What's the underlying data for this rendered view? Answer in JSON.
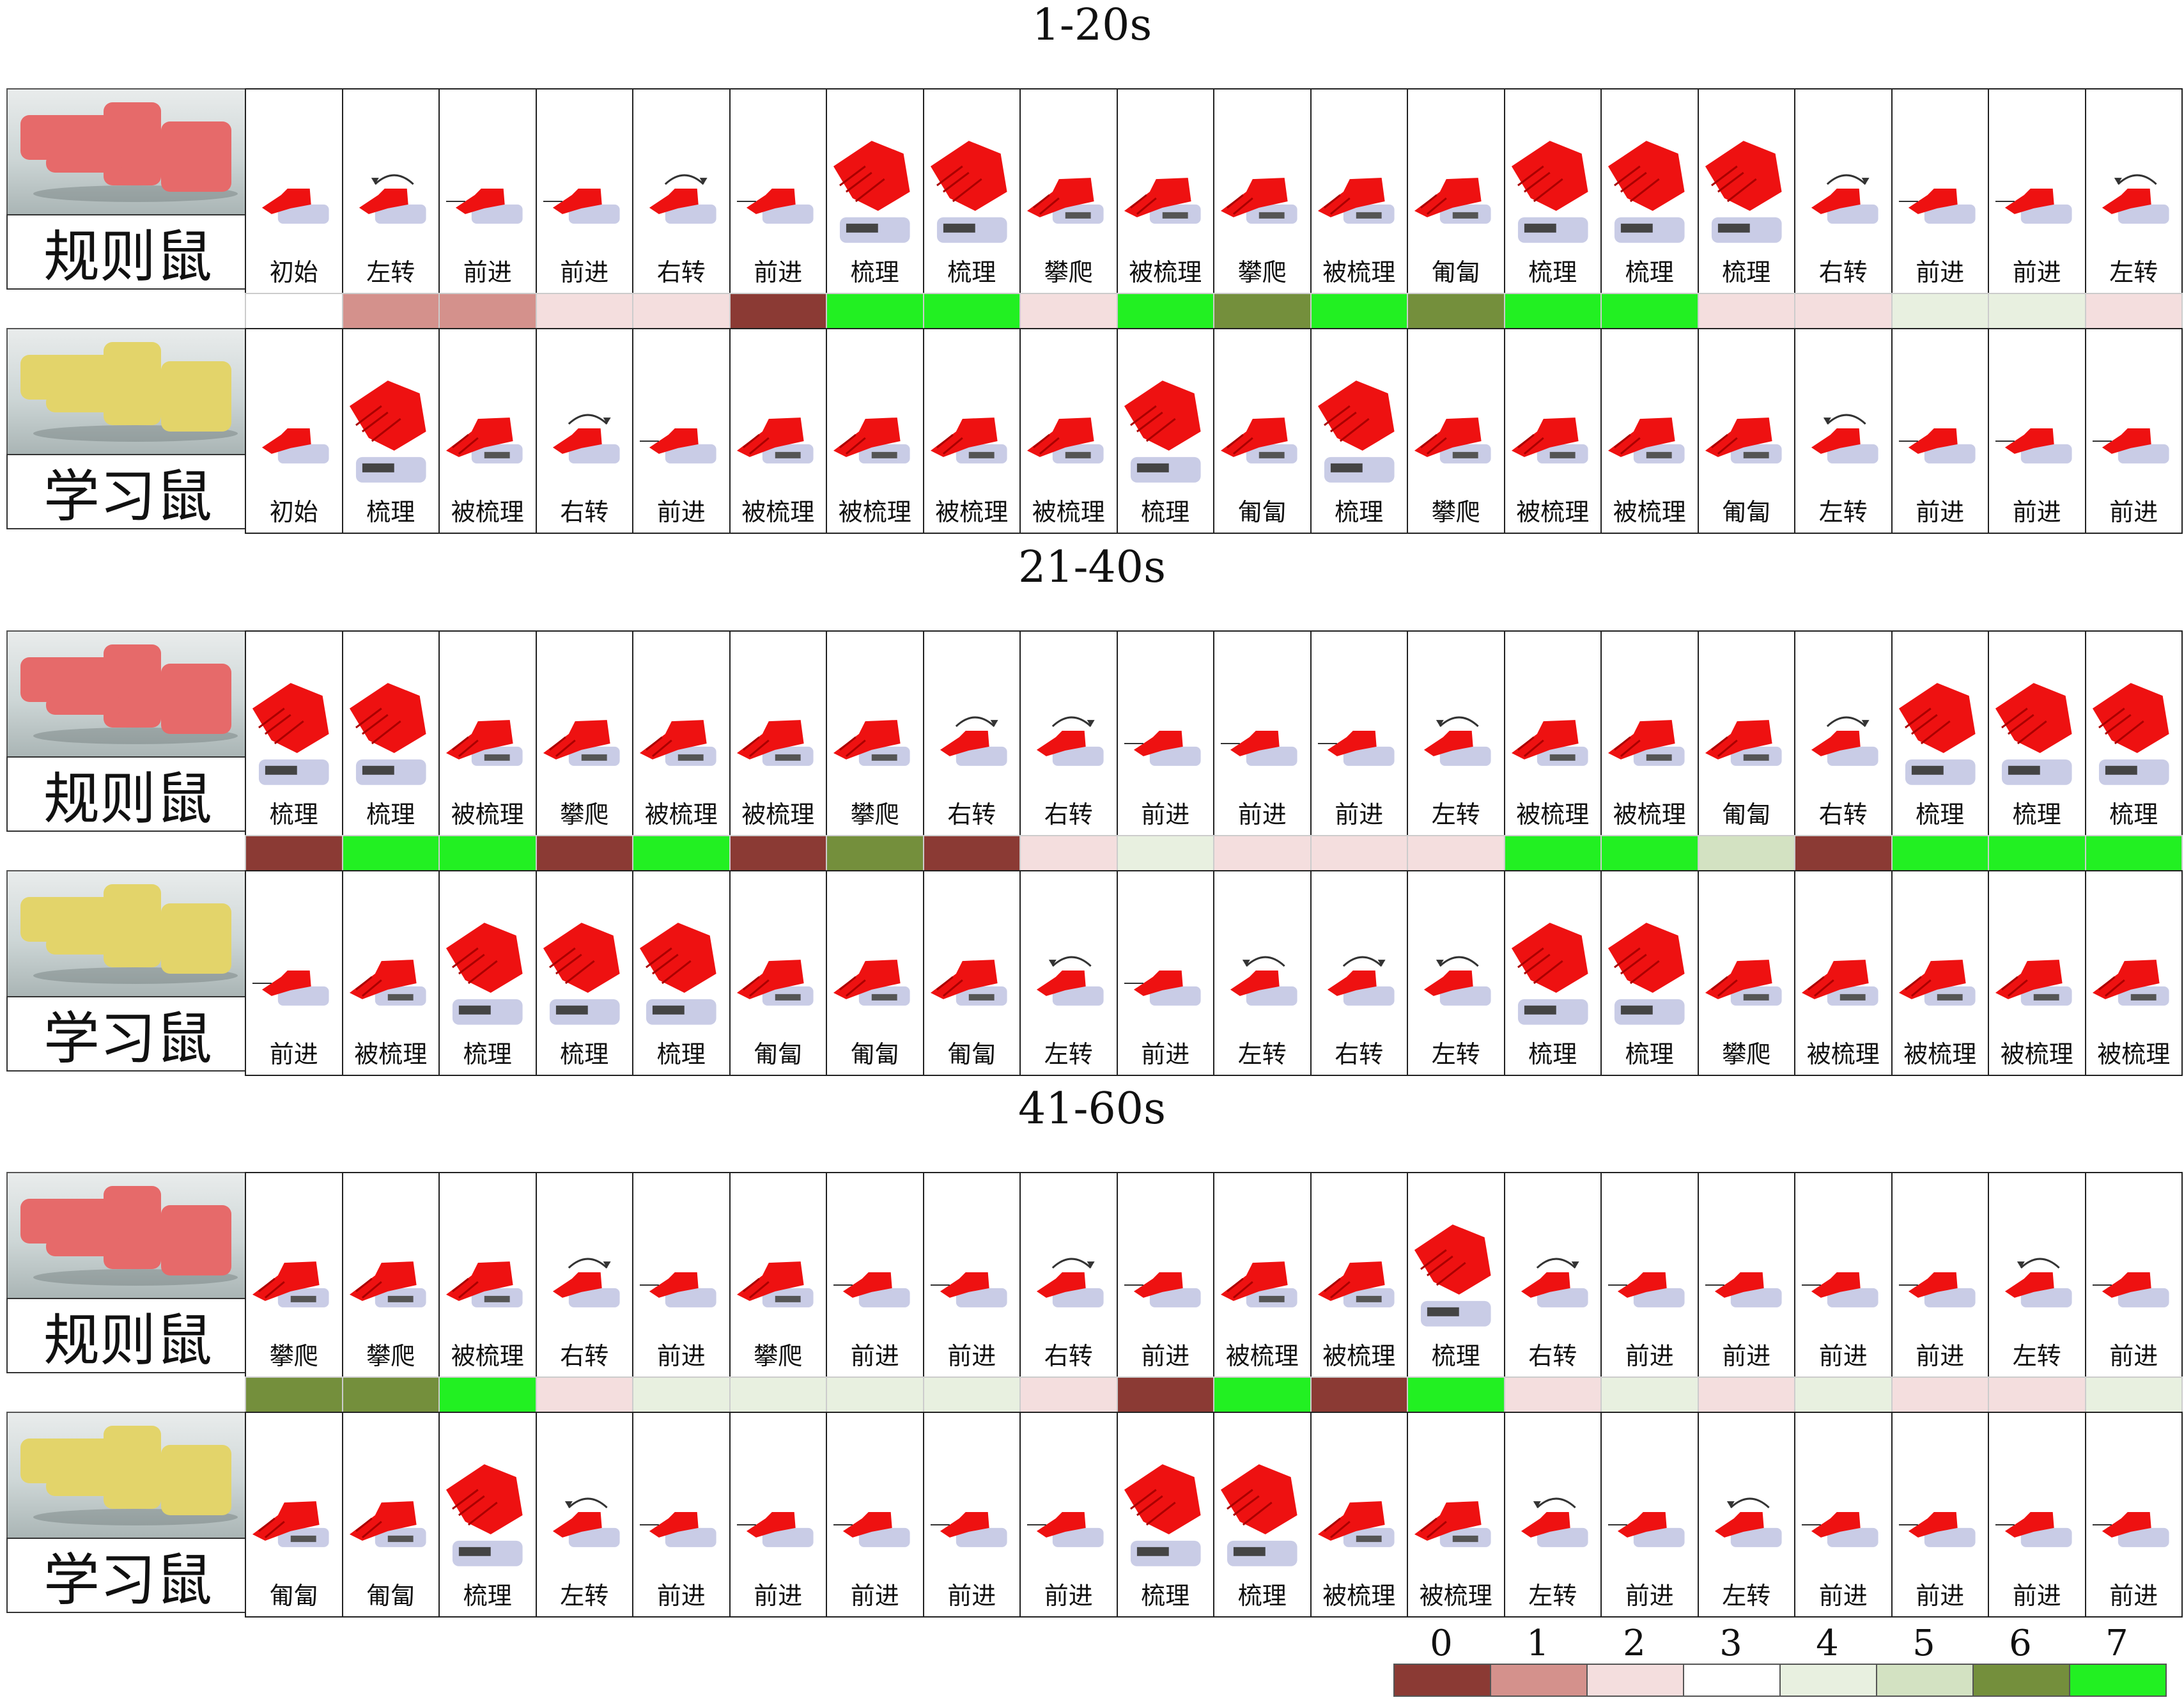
{
  "sections": [
    {
      "title": "1-20s",
      "rule_label": "规则鼠",
      "learn_label": "学习鼠",
      "rule_actions": [
        "初始",
        "左转",
        "前进",
        "前进",
        "右转",
        "前进",
        "梳理",
        "梳理",
        "攀爬",
        "被梳理",
        "攀爬",
        "被梳理",
        "匍匐",
        "梳理",
        "梳理",
        "梳理",
        "右转",
        "前进",
        "前进",
        "左转"
      ],
      "learn_actions": [
        "初始",
        "梳理",
        "被梳理",
        "右转",
        "前进",
        "被梳理",
        "被梳理",
        "被梳理",
        "被梳理",
        "梳理",
        "匍匐",
        "梳理",
        "攀爬",
        "被梳理",
        "被梳理",
        "匍匐",
        "左转",
        "前进",
        "前进",
        "前进"
      ],
      "codes": [
        3,
        1,
        1,
        2,
        2,
        0,
        7,
        7,
        2,
        7,
        6,
        7,
        6,
        7,
        7,
        2,
        2,
        4,
        4,
        2
      ]
    },
    {
      "title": "21-40s",
      "rule_label": "规则鼠",
      "learn_label": "学习鼠",
      "rule_actions": [
        "梳理",
        "梳理",
        "被梳理",
        "攀爬",
        "被梳理",
        "被梳理",
        "攀爬",
        "右转",
        "右转",
        "前进",
        "前进",
        "前进",
        "左转",
        "被梳理",
        "被梳理",
        "匍匐",
        "右转",
        "梳理",
        "梳理",
        "梳理"
      ],
      "learn_actions": [
        "前进",
        "被梳理",
        "梳理",
        "梳理",
        "梳理",
        "匍匐",
        "匍匐",
        "匍匐",
        "左转",
        "前进",
        "左转",
        "右转",
        "左转",
        "梳理",
        "梳理",
        "攀爬",
        "被梳理",
        "被梳理",
        "被梳理",
        "被梳理"
      ],
      "codes": [
        0,
        7,
        7,
        0,
        7,
        0,
        6,
        0,
        2,
        4,
        2,
        2,
        2,
        7,
        7,
        5,
        0,
        7,
        7,
        7
      ]
    },
    {
      "title": "41-60s",
      "rule_label": "规则鼠",
      "learn_label": "学习鼠",
      "rule_actions": [
        "攀爬",
        "攀爬",
        "被梳理",
        "右转",
        "前进",
        "攀爬",
        "前进",
        "前进",
        "右转",
        "前进",
        "被梳理",
        "被梳理",
        "梳理",
        "右转",
        "前进",
        "前进",
        "前进",
        "前进",
        "左转",
        "前进"
      ],
      "learn_actions": [
        "匍匐",
        "匍匐",
        "梳理",
        "左转",
        "前进",
        "前进",
        "前进",
        "前进",
        "前进",
        "梳理",
        "梳理",
        "被梳理",
        "被梳理",
        "左转",
        "前进",
        "左转",
        "前进",
        "前进",
        "前进",
        "前进"
      ],
      "codes": [
        6,
        6,
        7,
        2,
        4,
        4,
        4,
        4,
        2,
        0,
        7,
        0,
        7,
        2,
        4,
        2,
        4,
        2,
        2,
        4
      ]
    }
  ],
  "legend": {
    "labels": [
      "0",
      "1",
      "2",
      "3",
      "4",
      "5",
      "6",
      "7"
    ],
    "colors": [
      "#8b3a34",
      "#d4918c",
      "#f4dede",
      "#ffffff",
      "#e8f0e0",
      "#d3e2c2",
      "#748f3c",
      "#22f022"
    ]
  },
  "icon_colors": {
    "mouse": "#ee1111",
    "base": "#c9cce6"
  }
}
